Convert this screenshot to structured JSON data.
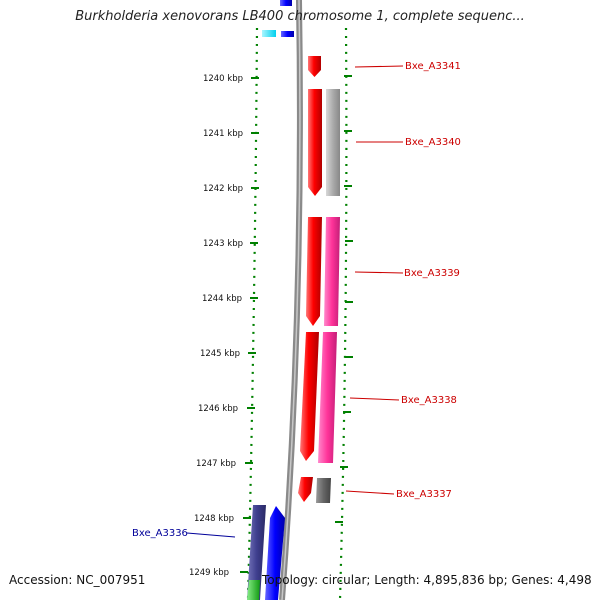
{
  "header": {
    "title": "Burkholderia xenovorans LB400 chromosome 1, complete sequenc..."
  },
  "footer": {
    "accession": "Accession: NC_007951",
    "summary": "Topology: circular; Length: 4,895,836 bp; Genes: 4,498"
  },
  "ticks": [
    "1240 kbp",
    "1241 kbp",
    "1242 kbp",
    "1243 kbp",
    "1244 kbp",
    "1245 kbp",
    "1246 kbp",
    "1247 kbp",
    "1248 kbp",
    "1249 kbp"
  ],
  "genes": [
    {
      "id": "Bxe_A3341",
      "label": "Bxe_A3341",
      "color": "#cc0000"
    },
    {
      "id": "Bxe_A3340",
      "label": "Bxe_A3340",
      "color": "#cc0000"
    },
    {
      "id": "Bxe_A3339",
      "label": "Bxe_A3339",
      "color": "#cc0000"
    },
    {
      "id": "Bxe_A3338",
      "label": "Bxe_A3338",
      "color": "#cc0000"
    },
    {
      "id": "Bxe_A3337",
      "label": "Bxe_A3337",
      "color": "#cc0000"
    },
    {
      "id": "Bxe_A3336",
      "label": "Bxe_A3336",
      "color": "#000099"
    }
  ],
  "colors": {
    "backbone": "#808080",
    "cds_red": "#ff0000",
    "gray": "#aaaaaa",
    "magenta": "#ff3399",
    "dark_gray": "#666666",
    "blue": "#0000ff",
    "navy": "#3f3f8f",
    "cyan": "#00e5ff",
    "green": "#22cc22",
    "dotted_ring": "#008000"
  }
}
